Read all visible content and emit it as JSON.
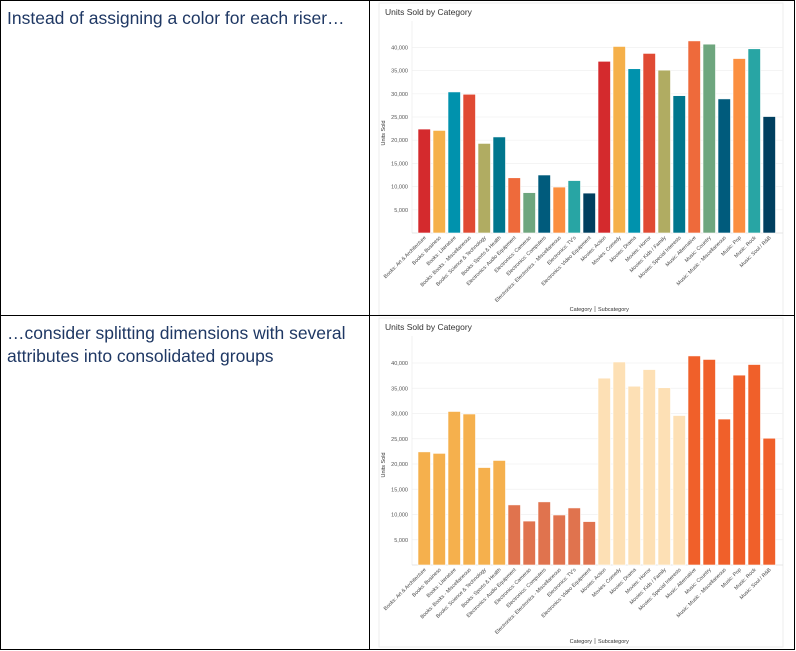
{
  "rows": [
    {
      "note": "Instead of assigning a color for each riser…"
    },
    {
      "note": "…consider splitting dimensions with several attributes into consolidated groups"
    }
  ],
  "chart_data": [
    {
      "type": "bar",
      "title": "Units Sold by Category",
      "ylabel": "Units Sold",
      "xlabel_parts": [
        "Category",
        "Subcategory"
      ],
      "ylim": [
        0,
        42000
      ],
      "yticks": [
        "5,000",
        "10,000",
        "15,000",
        "20,000",
        "25,000",
        "30,000",
        "35,000",
        "40,000"
      ],
      "grid": true,
      "categories": [
        "Books: Art & Architecture",
        "Books: Business",
        "Books: Literature",
        "Books: Books - Miscellaneous",
        "Books: Science & Technology",
        "Books: Sports & Health",
        "Electronics: Audio Equipment",
        "Electronics: Cameras",
        "Electronics: Computers",
        "Electronics: Electronics - Miscellaneous",
        "Electronics: TV's",
        "Electronics: Video Equipment",
        "Movies: Action",
        "Movies: Comedy",
        "Movies: Drama",
        "Movies: Horror",
        "Movies: Kids / Family",
        "Movies: Special Interests",
        "Music: Alternative",
        "Music: Country",
        "Music: Music - Miscellaneous",
        "Music: Pop",
        "Music: Rock",
        "Music: Soul / R&B"
      ],
      "values": [
        22400,
        22100,
        30400,
        29900,
        19300,
        20700,
        11900,
        8700,
        12500,
        9900,
        11300,
        8600,
        37000,
        40200,
        35400,
        38700,
        35100,
        29600,
        41400,
        40700,
        28900,
        37600,
        39700,
        25100
      ],
      "colors": [
        "#d42a2d",
        "#f5b04a",
        "#0092ad",
        "#e04a33",
        "#b0ac62",
        "#00768d",
        "#ee6a3b",
        "#6ea67e",
        "#005b7c",
        "#fb8f40",
        "#28a5a4",
        "#003f5f",
        "#d42a2d",
        "#f5b04a",
        "#0092ad",
        "#e04a33",
        "#b0ac62",
        "#00768d",
        "#ee6a3b",
        "#6ea67e",
        "#005b7c",
        "#fb8f40",
        "#28a5a4",
        "#003f5f"
      ]
    },
    {
      "type": "bar",
      "title": "Units Sold by Category",
      "ylabel": "Units Sold",
      "xlabel_parts": [
        "Category",
        "Subcategory"
      ],
      "ylim": [
        0,
        42000
      ],
      "yticks": [
        "5,000",
        "10,000",
        "15,000",
        "20,000",
        "25,000",
        "30,000",
        "35,000",
        "40,000"
      ],
      "grid": true,
      "categories": [
        "Books: Art & Architecture",
        "Books: Business",
        "Books: Literature",
        "Books: Books - Miscellaneous",
        "Books: Science & Technology",
        "Books: Sports & Health",
        "Electronics: Audio Equipment",
        "Electronics: Cameras",
        "Electronics: Computers",
        "Electronics: Electronics - Miscellaneous",
        "Electronics: TV's",
        "Electronics: Video Equipment",
        "Movies: Action",
        "Movies: Comedy",
        "Movies: Drama",
        "Movies: Horror",
        "Movies: Kids / Family",
        "Movies: Special Interests",
        "Music: Alternative",
        "Music: Country",
        "Music: Music - Miscellaneous",
        "Music: Pop",
        "Music: Rock",
        "Music: Soul / R&B"
      ],
      "values": [
        22400,
        22100,
        30400,
        29900,
        19300,
        20700,
        11900,
        8700,
        12500,
        9900,
        11300,
        8600,
        37000,
        40200,
        35400,
        38700,
        35100,
        29600,
        41400,
        40700,
        28900,
        37600,
        39700,
        25100
      ],
      "group_colors": {
        "Books": "#f5b04d",
        "Electronics": "#e0734e",
        "Movies": "#fde0b5",
        "Music": "#f0602a"
      }
    }
  ]
}
